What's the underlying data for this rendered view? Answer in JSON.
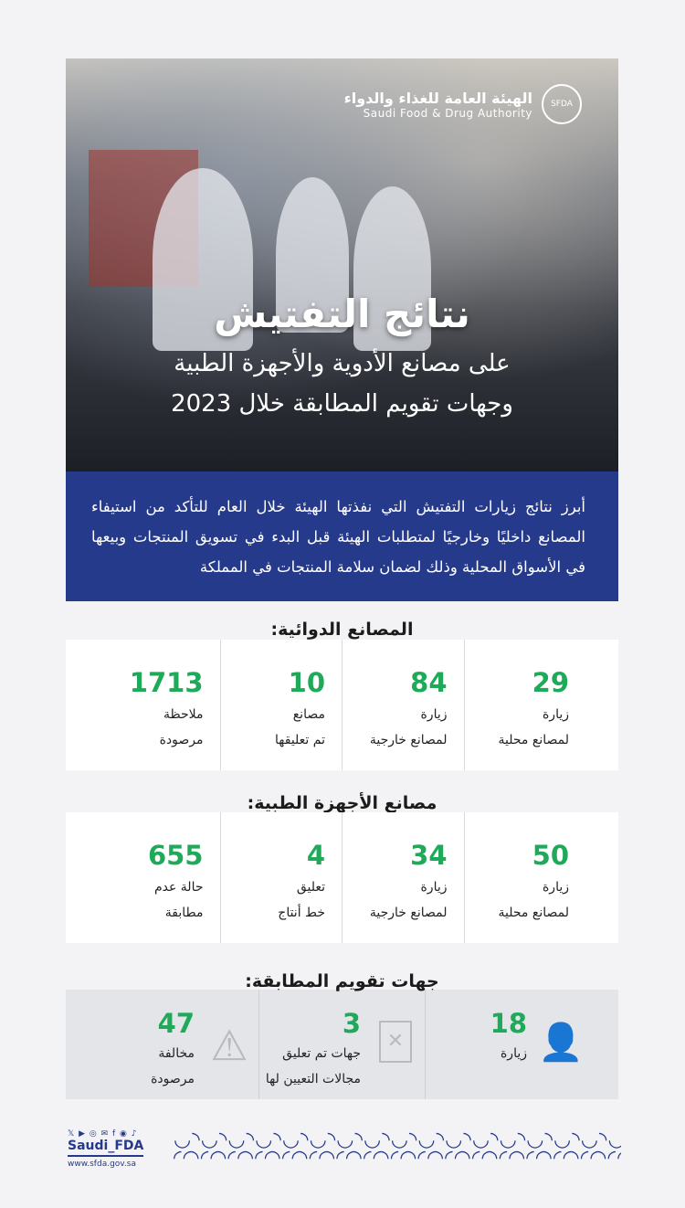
{
  "header": {
    "logo_ar": "الهيئة العامة للغذاء والدواء",
    "logo_en": "Saudi Food & Drug Authority",
    "logo_mark": "SFDA",
    "title": "نتائج التفتيش",
    "subtitle_1": "على مصانع الأدوية والأجهزة الطبية",
    "subtitle_2": "وجهات تقويم المطابقة خلال 2023"
  },
  "intro": "أبرز نتائج زيارات التفتيش التي نفذتها الهيئة خلال العام للتأكد من استيفاء المصانع داخليًا وخارجيًا لمتطلبات الهيئة قبل البدء في تسويق المنتجات وبيعها في الأسواق المحلية وذلك لضمان سلامة المنتجات في المملكة",
  "pharma": {
    "title": "المصانع الدوائية:",
    "stats": [
      {
        "value": "29",
        "label_1": "زيارة",
        "label_2": "لمصانع محلية"
      },
      {
        "value": "84",
        "label_1": "زيارة",
        "label_2": "لمصانع خارجية"
      },
      {
        "value": "10",
        "label_1": "مصانع",
        "label_2": "تم تعليقها"
      },
      {
        "value": "1713",
        "label_1": "ملاحظة",
        "label_2": "مرصودة"
      }
    ]
  },
  "devices": {
    "title": "مصانع الأجهزة الطبية:",
    "stats": [
      {
        "value": "50",
        "label_1": "زيارة",
        "label_2": "لمصانع محلية"
      },
      {
        "value": "34",
        "label_1": "زيارة",
        "label_2": "لمصانع خارجية"
      },
      {
        "value": "4",
        "label_1": "تعليق",
        "label_2": "خط أنتاج"
      },
      {
        "value": "655",
        "label_1": "حالة عدم",
        "label_2": "مطابقة"
      }
    ]
  },
  "conformity": {
    "title": "جهات تقويم المطابقة:",
    "stats": [
      {
        "value": "18",
        "label_1": "زيارة",
        "label_2": "",
        "icon": "inspector-icon"
      },
      {
        "value": "3",
        "label_1": "جهات تم تعليق",
        "label_2": "مجالات التعيين لها",
        "icon": "rejected-document-icon"
      },
      {
        "value": "47",
        "label_1": "مخالفة",
        "label_2": "مرصودة",
        "icon": "warning-icon"
      }
    ]
  },
  "footer": {
    "social": "𝕏 ▶ ◎ ✉ f ◉ ♪",
    "handle": "Saudi_FDA",
    "url": "www.sfda.gov.sa"
  },
  "colors": {
    "accent_green": "#1faa59",
    "brand_blue": "#263a8c"
  }
}
